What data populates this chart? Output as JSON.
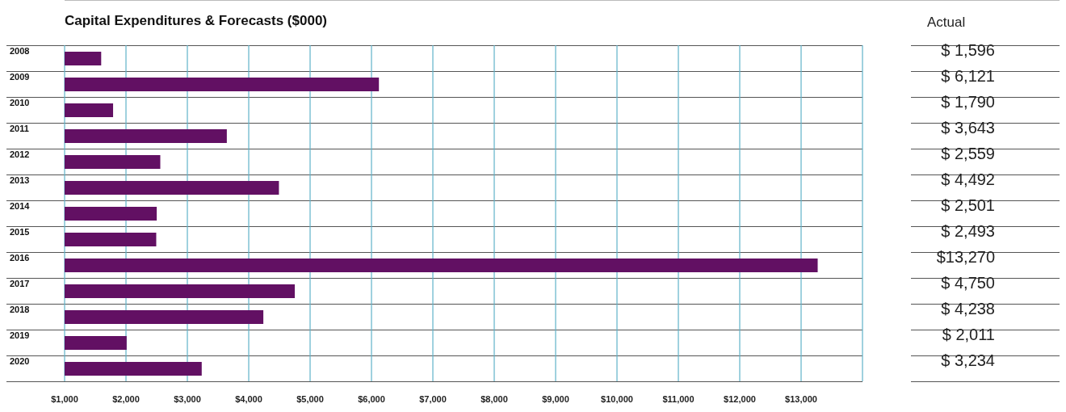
{
  "chart_data": {
    "type": "bar",
    "orientation": "horizontal",
    "title": "Capital Expenditures & Forecasts ($000)",
    "annotations": [
      "Actual"
    ],
    "categories": [
      "2008",
      "2009",
      "2010",
      "2011",
      "2012",
      "2013",
      "2014",
      "2015",
      "2016",
      "2017",
      "2018",
      "2019",
      "2020"
    ],
    "values": [
      1596,
      6121,
      1790,
      3643,
      2559,
      4492,
      2501,
      2493,
      13270,
      4750,
      4238,
      2011,
      3234
    ],
    "value_labels": [
      "$ 1,596",
      "$ 6,121",
      "$ 1,790",
      "$ 3,643",
      "$ 2,559",
      "$ 4,492",
      "$ 2,501",
      "$ 2,493",
      "$13,270",
      "$ 4,750",
      "$ 4,238",
      "$ 2,011",
      "$ 3,234"
    ],
    "color": "#621063",
    "xlim": [
      1000,
      14000
    ],
    "xticks": [
      {
        "value": 1000,
        "label": "$1,000"
      },
      {
        "value": 2000,
        "label": "$2,000"
      },
      {
        "value": 3000,
        "label": "$3,000"
      },
      {
        "value": 4000,
        "label": "$4,000"
      },
      {
        "value": 5000,
        "label": "$5,000"
      },
      {
        "value": 6000,
        "label": "$6,000"
      },
      {
        "value": 7000,
        "label": "$7,000"
      },
      {
        "value": 8000,
        "label": "$8,000"
      },
      {
        "value": 9000,
        "label": "$9,000"
      },
      {
        "value": 10000,
        "label": "$10,000"
      },
      {
        "value": 11000,
        "label": "$11,000"
      },
      {
        "value": 12000,
        "label": "$12,000"
      },
      {
        "value": 13000,
        "label": "$13,000"
      },
      {
        "value": 14000,
        "label": null
      }
    ],
    "grid": "x"
  }
}
